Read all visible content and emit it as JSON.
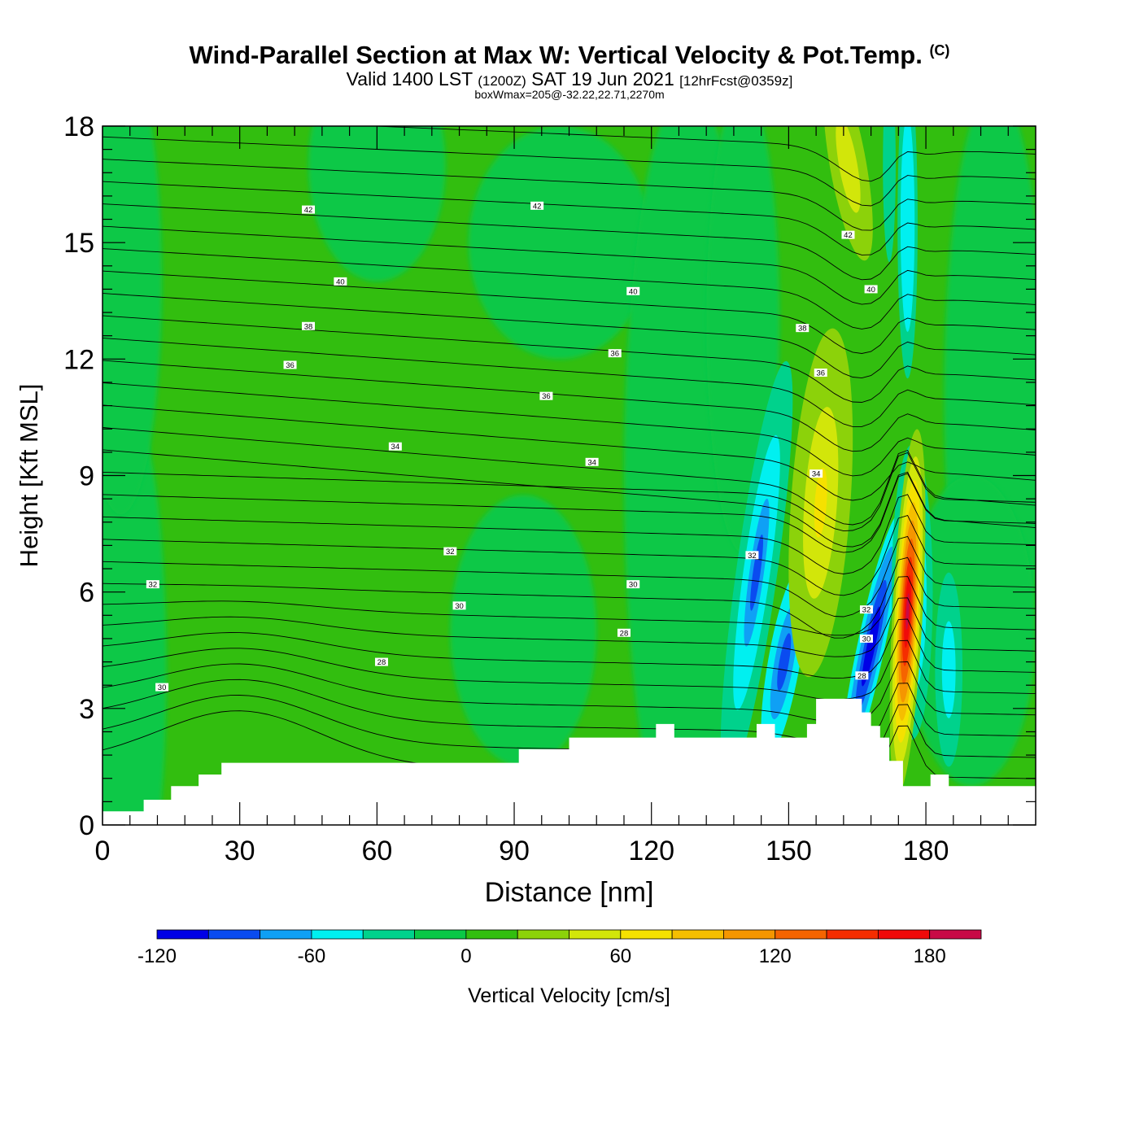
{
  "header": {
    "title": "Wind-Parallel Section at Max W: Vertical Velocity & Pot.Temp.",
    "title_tag": "(C)",
    "subtitle_main": "Valid 1400 LST",
    "subtitle_utc": "(1200Z)",
    "subtitle_date": "SAT 19 Jun 2021",
    "subtitle_fcst": "[12hrFcst@0359z]",
    "boxinfo": "boxWmax=205@-32.22,22.71,2270m"
  },
  "chart_data": {
    "type": "heatmap",
    "title": "Wind-Parallel Section at Max W: Vertical Velocity & Pot.Temp.",
    "xlabel": "Distance [nm]",
    "ylabel": "Height [Kft MSL]",
    "xlim": [
      0,
      204
    ],
    "ylim": [
      0,
      18
    ],
    "x_ticks": [
      0,
      30,
      60,
      90,
      120,
      150,
      180
    ],
    "y_ticks": [
      0,
      3,
      6,
      9,
      12,
      15,
      18
    ],
    "colorbar": {
      "label": "Vertical Velocity [cm/s]",
      "levels": [
        -120,
        -100,
        -80,
        -60,
        -40,
        -20,
        0,
        20,
        40,
        60,
        80,
        100,
        120,
        140,
        160,
        180,
        200
      ],
      "tick_labels": [
        "-120",
        "-60",
        "0",
        "60",
        "120",
        "180"
      ],
      "tick_values": [
        -120,
        -60,
        0,
        60,
        120,
        180
      ],
      "colors": [
        "#0000e6",
        "#0a4bf0",
        "#0fa0f5",
        "#00f0f0",
        "#00d28c",
        "#0ac846",
        "#32be0f",
        "#8cd20a",
        "#d2e60a",
        "#f5e100",
        "#f5be00",
        "#f59600",
        "#f56400",
        "#f52d00",
        "#f00a0a",
        "#c80a46"
      ]
    },
    "background_value_range": [
      0,
      20
    ],
    "field_features": [
      {
        "kind": "downdraft",
        "x": 147,
        "y": 5.0,
        "w_min": -110
      },
      {
        "kind": "downdraft",
        "x": 168,
        "y": 4.5,
        "w_min": -120
      },
      {
        "kind": "updraft",
        "x": 175,
        "y": 5.5,
        "w_max": 205
      },
      {
        "kind": "updraft",
        "x": 157,
        "y": 8.0,
        "w_max": 60
      },
      {
        "kind": "updraft",
        "x": 163,
        "y": 17.0,
        "w_max": 40
      },
      {
        "kind": "downdraft",
        "x": 177,
        "y": 16.0,
        "w_min": -60
      }
    ],
    "terrain_height": [
      [
        0,
        0.35
      ],
      [
        9,
        0.35
      ],
      [
        9,
        0.65
      ],
      [
        15,
        0.65
      ],
      [
        15,
        1.0
      ],
      [
        21,
        1.0
      ],
      [
        21,
        1.3
      ],
      [
        26,
        1.3
      ],
      [
        26,
        1.6
      ],
      [
        91,
        1.6
      ],
      [
        91,
        1.95
      ],
      [
        102,
        1.95
      ],
      [
        102,
        2.25
      ],
      [
        121,
        2.25
      ],
      [
        121,
        2.6
      ],
      [
        125,
        2.6
      ],
      [
        125,
        2.25
      ],
      [
        143,
        2.25
      ],
      [
        143,
        2.6
      ],
      [
        147,
        2.6
      ],
      [
        147,
        2.25
      ],
      [
        154,
        2.25
      ],
      [
        154,
        2.6
      ],
      [
        156,
        2.6
      ],
      [
        156,
        3.25
      ],
      [
        166,
        3.25
      ],
      [
        166,
        2.9
      ],
      [
        168,
        2.9
      ],
      [
        168,
        2.55
      ],
      [
        170,
        2.55
      ],
      [
        170,
        2.25
      ],
      [
        172,
        2.25
      ],
      [
        172,
        1.65
      ],
      [
        175,
        1.65
      ],
      [
        175,
        1.0
      ],
      [
        181,
        1.0
      ],
      [
        181,
        1.3
      ],
      [
        185,
        1.3
      ],
      [
        185,
        1.0
      ],
      [
        204,
        1.0
      ]
    ],
    "contour_labels": [
      {
        "text": "42",
        "x": 45,
        "y": 15.85
      },
      {
        "text": "42",
        "x": 95,
        "y": 15.95
      },
      {
        "text": "42",
        "x": 163,
        "y": 15.2
      },
      {
        "text": "40",
        "x": 52,
        "y": 14.0
      },
      {
        "text": "40",
        "x": 116,
        "y": 13.75
      },
      {
        "text": "40",
        "x": 168,
        "y": 13.8
      },
      {
        "text": "38",
        "x": 45,
        "y": 12.85
      },
      {
        "text": "38",
        "x": 153,
        "y": 12.8
      },
      {
        "text": "36",
        "x": 41,
        "y": 11.85
      },
      {
        "text": "36",
        "x": 112,
        "y": 12.15
      },
      {
        "text": "36",
        "x": 157,
        "y": 11.65
      },
      {
        "text": "36",
        "x": 97,
        "y": 11.05
      },
      {
        "text": "34",
        "x": 64,
        "y": 9.75
      },
      {
        "text": "34",
        "x": 107,
        "y": 9.35
      },
      {
        "text": "34",
        "x": 156,
        "y": 9.05
      },
      {
        "text": "32",
        "x": 11,
        "y": 6.2
      },
      {
        "text": "32",
        "x": 76,
        "y": 7.05
      },
      {
        "text": "32",
        "x": 142,
        "y": 6.95
      },
      {
        "text": "32",
        "x": 167,
        "y": 5.55
      },
      {
        "text": "30",
        "x": 78,
        "y": 5.65
      },
      {
        "text": "30",
        "x": 116,
        "y": 6.2
      },
      {
        "text": "30",
        "x": 13,
        "y": 3.55
      },
      {
        "text": "30",
        "x": 167,
        "y": 4.8
      },
      {
        "text": "28",
        "x": 114,
        "y": 4.95
      },
      {
        "text": "28",
        "x": 166,
        "y": 3.85
      },
      {
        "text": "28",
        "x": 61,
        "y": 4.2
      }
    ]
  }
}
